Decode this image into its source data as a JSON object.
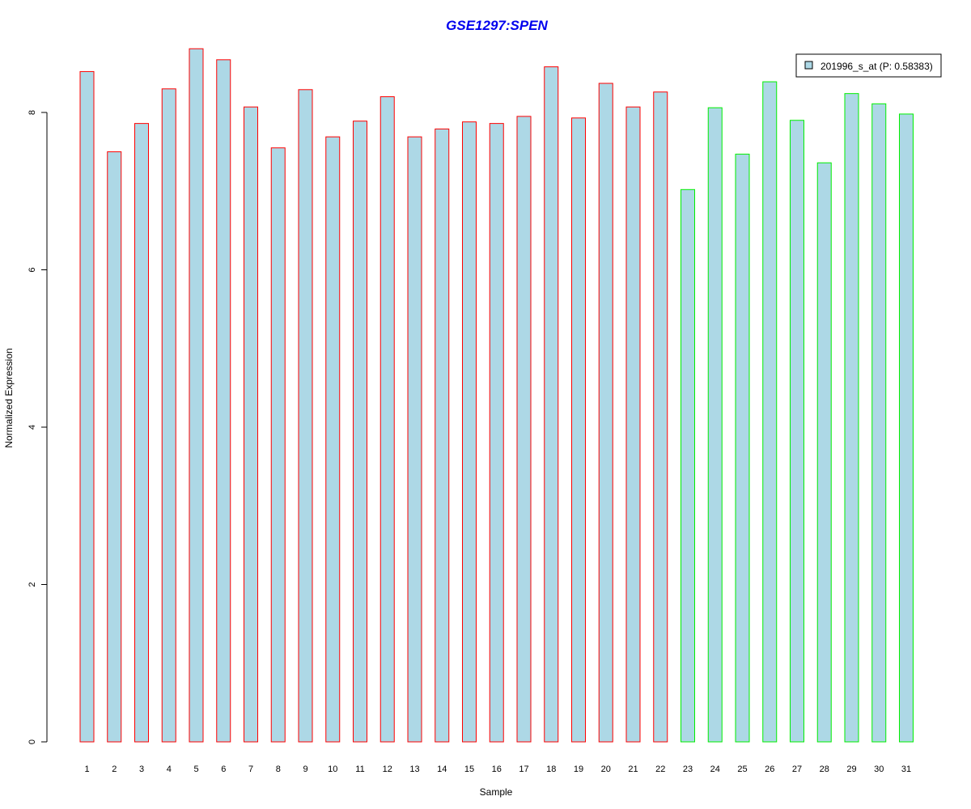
{
  "chart_data": {
    "type": "bar",
    "title": "GSE1297:SPEN",
    "xlabel": "Sample",
    "ylabel": "Normalized Expression",
    "ylim": [
      0,
      8.8
    ],
    "yticks": [
      "0",
      "2",
      "4",
      "6",
      "8"
    ],
    "categories": [
      "1",
      "2",
      "3",
      "4",
      "5",
      "6",
      "7",
      "8",
      "9",
      "10",
      "11",
      "12",
      "13",
      "14",
      "15",
      "16",
      "17",
      "18",
      "19",
      "20",
      "21",
      "22",
      "23",
      "24",
      "25",
      "26",
      "27",
      "28",
      "29",
      "30",
      "31"
    ],
    "values": [
      8.52,
      7.5,
      7.86,
      8.3,
      8.81,
      8.67,
      8.07,
      7.55,
      8.29,
      7.69,
      7.89,
      8.2,
      7.69,
      7.79,
      7.88,
      7.86,
      7.95,
      8.58,
      7.93,
      8.37,
      8.07,
      8.26,
      7.02,
      8.06,
      7.47,
      8.39,
      7.9,
      7.36,
      8.24,
      8.11,
      7.98
    ],
    "group_colors": [
      "#ff0000",
      "#ff0000",
      "#ff0000",
      "#ff0000",
      "#ff0000",
      "#ff0000",
      "#ff0000",
      "#ff0000",
      "#ff0000",
      "#ff0000",
      "#ff0000",
      "#ff0000",
      "#ff0000",
      "#ff0000",
      "#ff0000",
      "#ff0000",
      "#ff0000",
      "#ff0000",
      "#ff0000",
      "#ff0000",
      "#ff0000",
      "#ff0000",
      "#00ee00",
      "#00ee00",
      "#00ee00",
      "#00ee00",
      "#00ee00",
      "#00ee00",
      "#00ee00",
      "#00ee00",
      "#00ee00"
    ],
    "fill_color": "#add8e6",
    "legend": {
      "label": "201996_s_at (P: 0.58383)",
      "position": "top-right"
    },
    "grid": false
  }
}
